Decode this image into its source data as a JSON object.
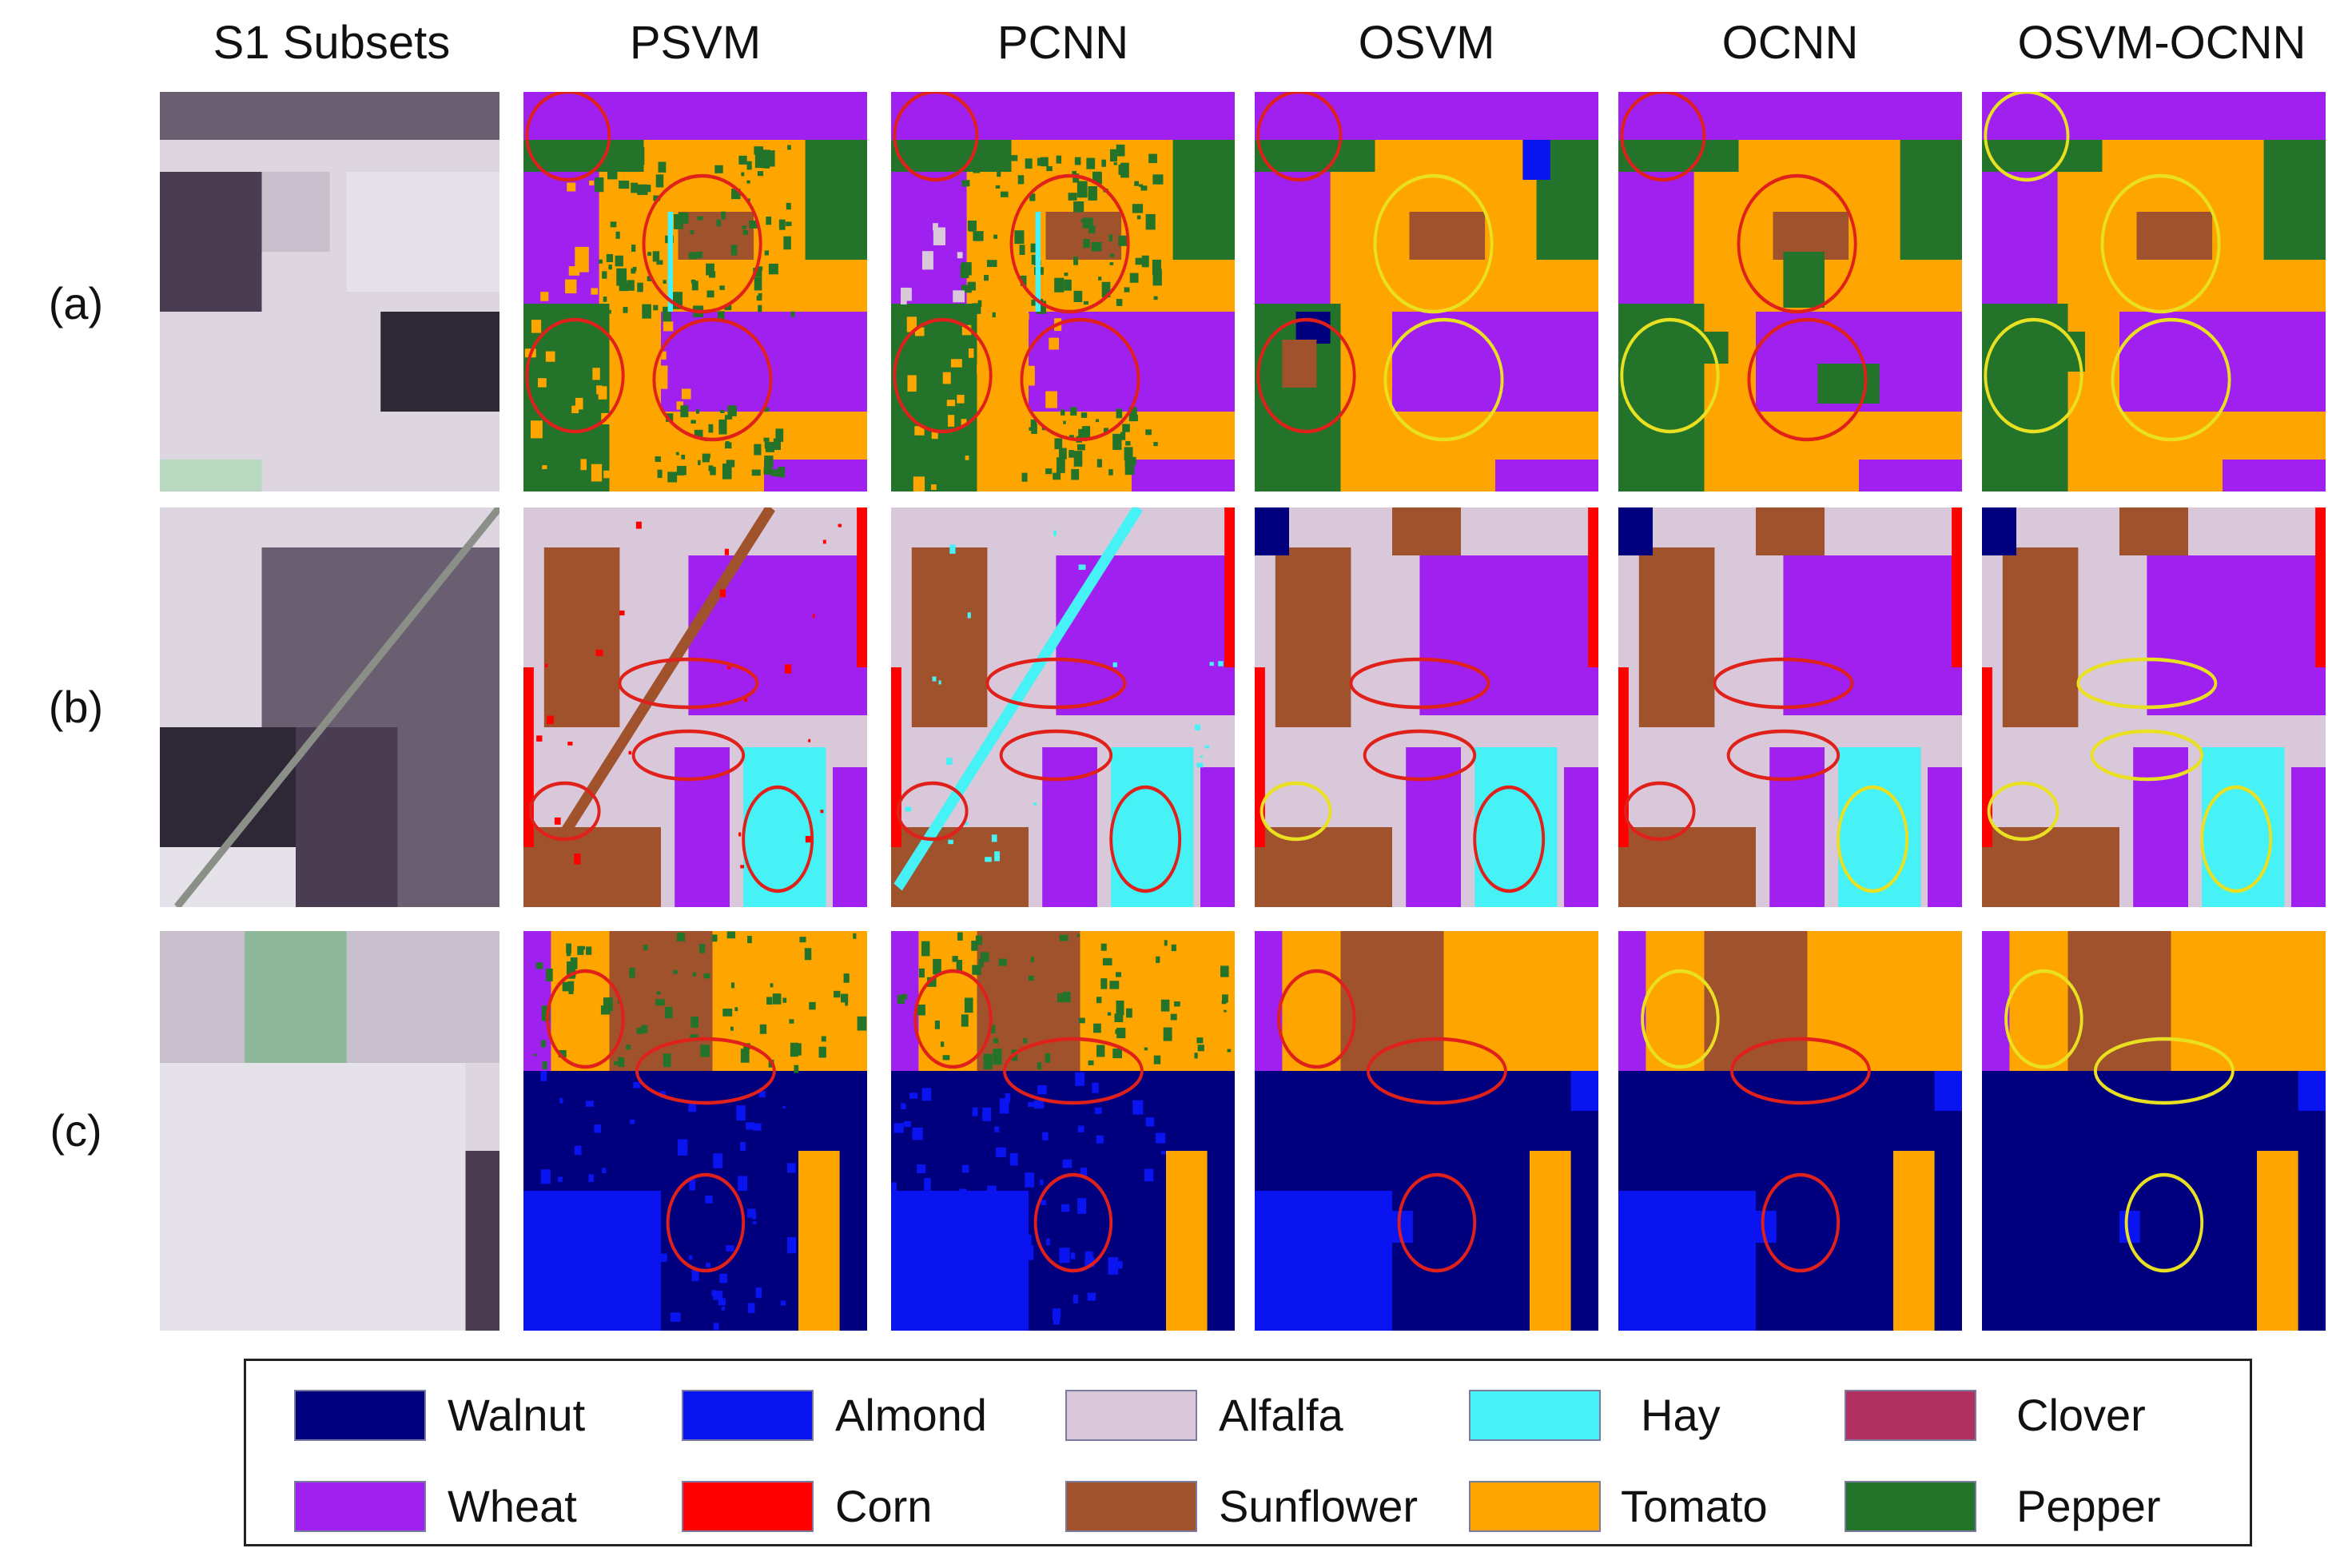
{
  "figure": {
    "columns": [
      "S1 Subsets",
      "PSVM",
      "PCNN",
      "OSVM",
      "OCNN",
      "OSVM-OCNN"
    ],
    "rows": [
      "(a)",
      "(b)",
      "(c)"
    ]
  },
  "legend": [
    {
      "label": "Walnut",
      "color": "#00007f"
    },
    {
      "label": "Almond",
      "color": "#0a14f0"
    },
    {
      "label": "Alfalfa",
      "color": "#d9c8d9"
    },
    {
      "label": "Hay",
      "color": "#46f2f5"
    },
    {
      "label": "Clover",
      "color": "#b03060"
    },
    {
      "label": "Wheat",
      "color": "#a020f0"
    },
    {
      "label": "Corn",
      "color": "#ff0000"
    },
    {
      "label": "Sunflower",
      "color": "#a0522d"
    },
    {
      "label": "Tomato",
      "color": "#ffa500"
    },
    {
      "label": "Pepper",
      "color": "#23732a"
    }
  ],
  "marker_colors": {
    "error": "#e0201a",
    "correct": "#e8e020"
  }
}
